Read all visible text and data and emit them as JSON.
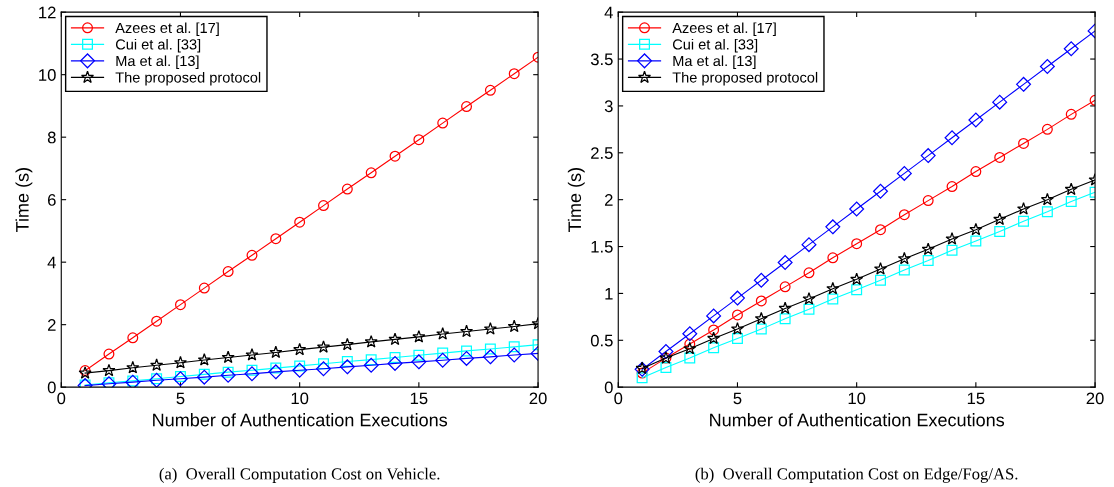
{
  "chart_data": [
    {
      "type": "line",
      "xlabel": "Number of Authentication Executions",
      "ylabel": "Time (s)",
      "xlim": [
        0,
        20
      ],
      "xticks": [
        0,
        5,
        10,
        15,
        20
      ],
      "ylim": [
        0,
        12
      ],
      "yticks": [
        0,
        2,
        4,
        6,
        8,
        10,
        12
      ],
      "legend": "top left",
      "grid": false,
      "annotations": [
        "(a)  Overall Computation Cost on Vehicle."
      ],
      "x": [
        1,
        2,
        3,
        4,
        5,
        6,
        7,
        8,
        9,
        10,
        11,
        12,
        13,
        14,
        15,
        16,
        17,
        18,
        19,
        20
      ],
      "series": [
        {
          "name": "Azees et al. [17]",
          "color": "#ff0000",
          "marker": "circle",
          "values": [
            0.53,
            1.06,
            1.58,
            2.11,
            2.64,
            3.17,
            3.7,
            4.22,
            4.75,
            5.28,
            5.81,
            6.34,
            6.86,
            7.39,
            7.92,
            8.45,
            8.98,
            9.5,
            10.03,
            10.56
          ]
        },
        {
          "name": "Cui et al. [33]",
          "color": "#00ffff",
          "marker": "square",
          "values": [
            0.07,
            0.14,
            0.2,
            0.27,
            0.34,
            0.41,
            0.48,
            0.54,
            0.61,
            0.68,
            0.75,
            0.82,
            0.88,
            0.95,
            1.02,
            1.09,
            1.16,
            1.22,
            1.29,
            1.36
          ]
        },
        {
          "name": "Ma et al. [13]",
          "color": "#0000ff",
          "marker": "diamond",
          "values": [
            0.05,
            0.11,
            0.16,
            0.22,
            0.27,
            0.32,
            0.38,
            0.43,
            0.49,
            0.54,
            0.59,
            0.65,
            0.7,
            0.76,
            0.81,
            0.86,
            0.92,
            0.97,
            1.03,
            1.08
          ]
        },
        {
          "name": "The proposed protocol",
          "color": "#000000",
          "marker": "star",
          "values": [
            0.45,
            0.53,
            0.62,
            0.7,
            0.78,
            0.87,
            0.95,
            1.03,
            1.11,
            1.2,
            1.28,
            1.36,
            1.45,
            1.53,
            1.61,
            1.7,
            1.78,
            1.86,
            1.94,
            2.03
          ]
        }
      ]
    },
    {
      "type": "line",
      "xlabel": "Number of Authentication Executions",
      "ylabel": "Time (s)",
      "xlim": [
        0,
        20
      ],
      "xticks": [
        0,
        5,
        10,
        15,
        20
      ],
      "ylim": [
        0,
        4
      ],
      "yticks": [
        0,
        0.5,
        1,
        1.5,
        2,
        2.5,
        3,
        3.5,
        4
      ],
      "legend": "top left",
      "grid": false,
      "annotations": [
        "(b)  Overall Computation Cost on Edge/Fog/AS."
      ],
      "x": [
        1,
        2,
        3,
        4,
        5,
        6,
        7,
        8,
        9,
        10,
        11,
        12,
        13,
        14,
        15,
        16,
        17,
        18,
        19,
        20
      ],
      "series": [
        {
          "name": "Azees et al. [17]",
          "color": "#ff0000",
          "marker": "circle",
          "values": [
            0.15,
            0.31,
            0.46,
            0.61,
            0.77,
            0.92,
            1.07,
            1.22,
            1.38,
            1.53,
            1.68,
            1.84,
            1.99,
            2.14,
            2.3,
            2.45,
            2.6,
            2.75,
            2.91,
            3.06
          ]
        },
        {
          "name": "Cui et al. [33]",
          "color": "#00ffff",
          "marker": "square",
          "values": [
            0.1,
            0.21,
            0.31,
            0.42,
            0.52,
            0.62,
            0.73,
            0.83,
            0.94,
            1.04,
            1.14,
            1.25,
            1.35,
            1.46,
            1.56,
            1.66,
            1.77,
            1.87,
            1.98,
            2.08
          ]
        },
        {
          "name": "Ma et al. [13]",
          "color": "#0000ff",
          "marker": "diamond",
          "values": [
            0.19,
            0.38,
            0.57,
            0.76,
            0.95,
            1.14,
            1.33,
            1.52,
            1.71,
            1.9,
            2.09,
            2.28,
            2.47,
            2.66,
            2.85,
            3.04,
            3.23,
            3.42,
            3.61,
            3.8
          ]
        },
        {
          "name": "The proposed protocol",
          "color": "#000000",
          "marker": "star",
          "values": [
            0.2,
            0.31,
            0.41,
            0.52,
            0.62,
            0.73,
            0.84,
            0.94,
            1.05,
            1.15,
            1.26,
            1.37,
            1.47,
            1.58,
            1.68,
            1.79,
            1.9,
            2.0,
            2.11,
            2.21
          ]
        }
      ]
    }
  ]
}
